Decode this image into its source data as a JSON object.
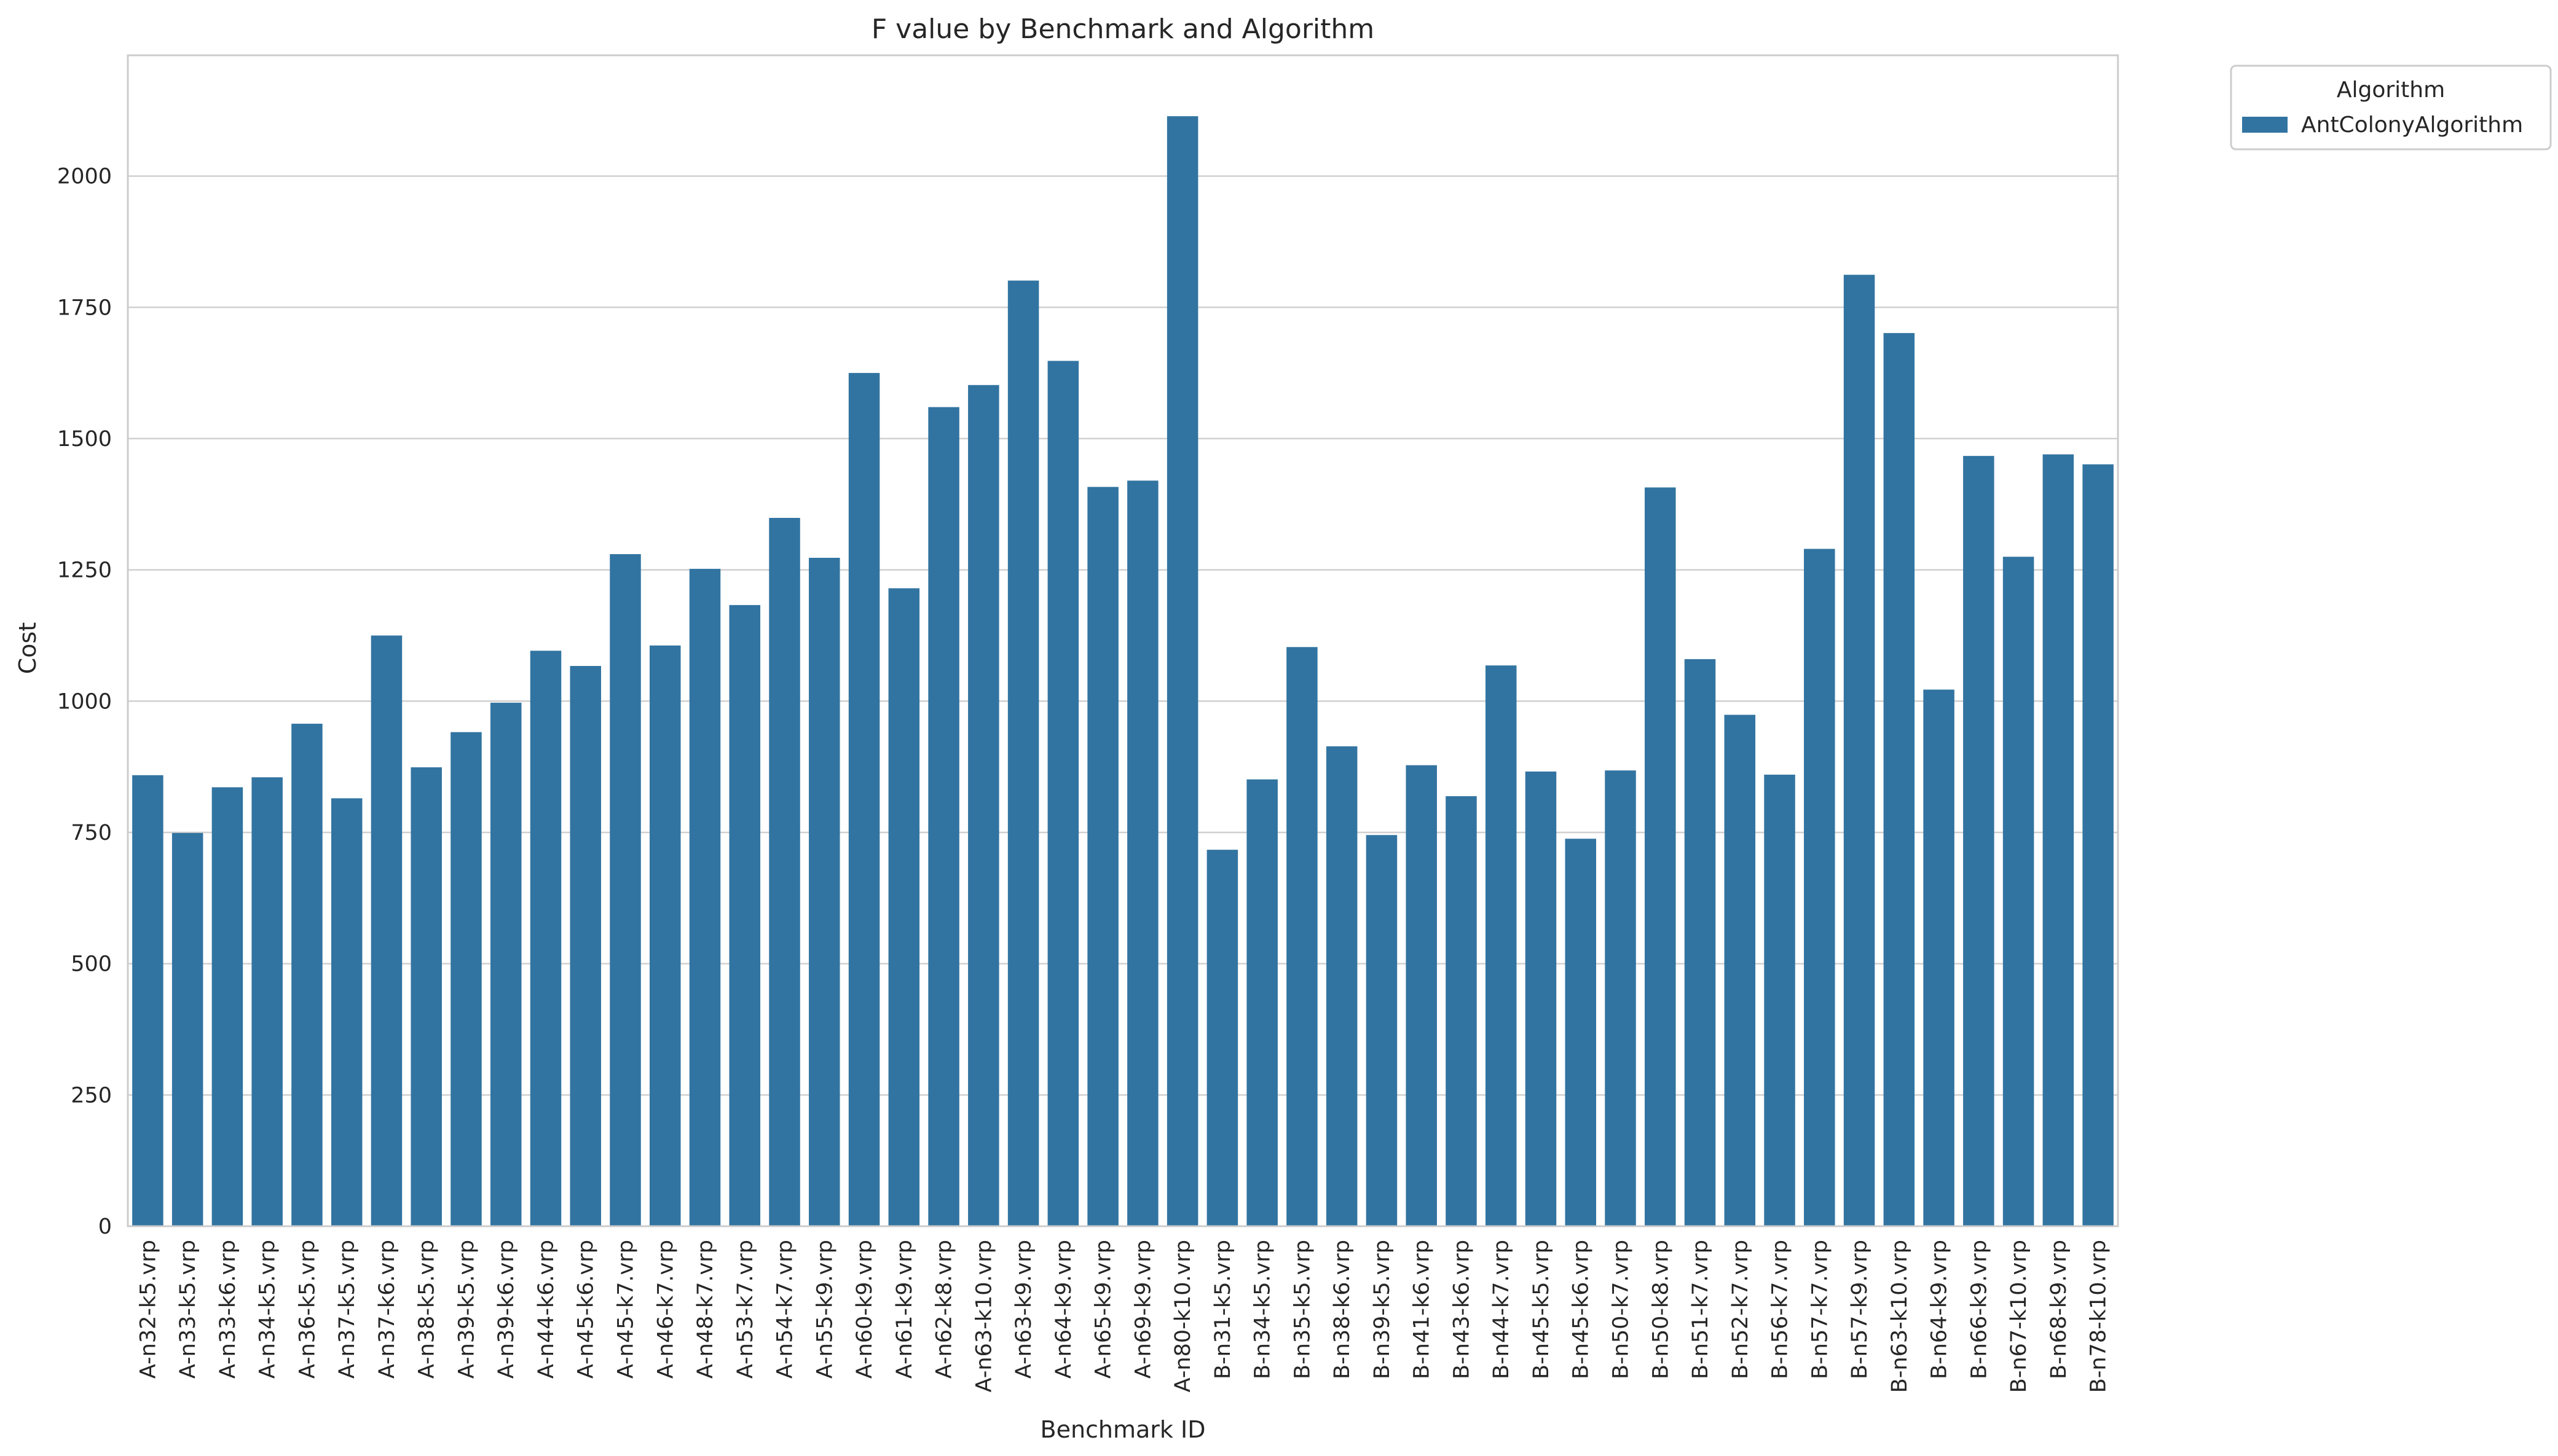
{
  "chart_data": {
    "type": "bar",
    "title": "F value by Benchmark and Algorithm",
    "xlabel": "Benchmark ID",
    "ylabel": "Cost",
    "ylim": [
      0,
      2230
    ],
    "yticks": [
      0,
      250,
      500,
      750,
      1000,
      1250,
      1500,
      1750,
      2000
    ],
    "grid": "horizontal",
    "legend": {
      "title": "Algorithm",
      "placement": "outside-top-right"
    },
    "categories": [
      "A-n32-k5.vrp",
      "A-n33-k5.vrp",
      "A-n33-k6.vrp",
      "A-n34-k5.vrp",
      "A-n36-k5.vrp",
      "A-n37-k5.vrp",
      "A-n37-k6.vrp",
      "A-n38-k5.vrp",
      "A-n39-k5.vrp",
      "A-n39-k6.vrp",
      "A-n44-k6.vrp",
      "A-n45-k6.vrp",
      "A-n45-k7.vrp",
      "A-n46-k7.vrp",
      "A-n48-k7.vrp",
      "A-n53-k7.vrp",
      "A-n54-k7.vrp",
      "A-n55-k9.vrp",
      "A-n60-k9.vrp",
      "A-n61-k9.vrp",
      "A-n62-k8.vrp",
      "A-n63-k10.vrp",
      "A-n63-k9.vrp",
      "A-n64-k9.vrp",
      "A-n65-k9.vrp",
      "A-n69-k9.vrp",
      "A-n80-k10.vrp",
      "B-n31-k5.vrp",
      "B-n34-k5.vrp",
      "B-n35-k5.vrp",
      "B-n38-k6.vrp",
      "B-n39-k5.vrp",
      "B-n41-k6.vrp",
      "B-n43-k6.vrp",
      "B-n44-k7.vrp",
      "B-n45-k5.vrp",
      "B-n45-k6.vrp",
      "B-n50-k7.vrp",
      "B-n50-k8.vrp",
      "B-n51-k7.vrp",
      "B-n52-k7.vrp",
      "B-n56-k7.vrp",
      "B-n57-k7.vrp",
      "B-n57-k9.vrp",
      "B-n63-k10.vrp",
      "B-n64-k9.vrp",
      "B-n66-k9.vrp",
      "B-n67-k10.vrp",
      "B-n68-k9.vrp",
      "B-n78-k10.vrp"
    ],
    "series": [
      {
        "name": "AntColonyAlgorithm",
        "color": "#3274a1",
        "values": [
          859,
          749,
          836,
          855,
          957,
          815,
          1125,
          874,
          941,
          997,
          1096,
          1067,
          1280,
          1106,
          1252,
          1183,
          1349,
          1273,
          1625,
          1215,
          1560,
          1602,
          1801,
          1648,
          1408,
          1420,
          2114,
          717,
          851,
          1103,
          914,
          745,
          878,
          819,
          1068,
          866,
          738,
          868,
          1407,
          1080,
          974,
          860,
          1290,
          1812,
          1701,
          1022,
          1467,
          1275,
          1470,
          1451
        ]
      }
    ]
  }
}
